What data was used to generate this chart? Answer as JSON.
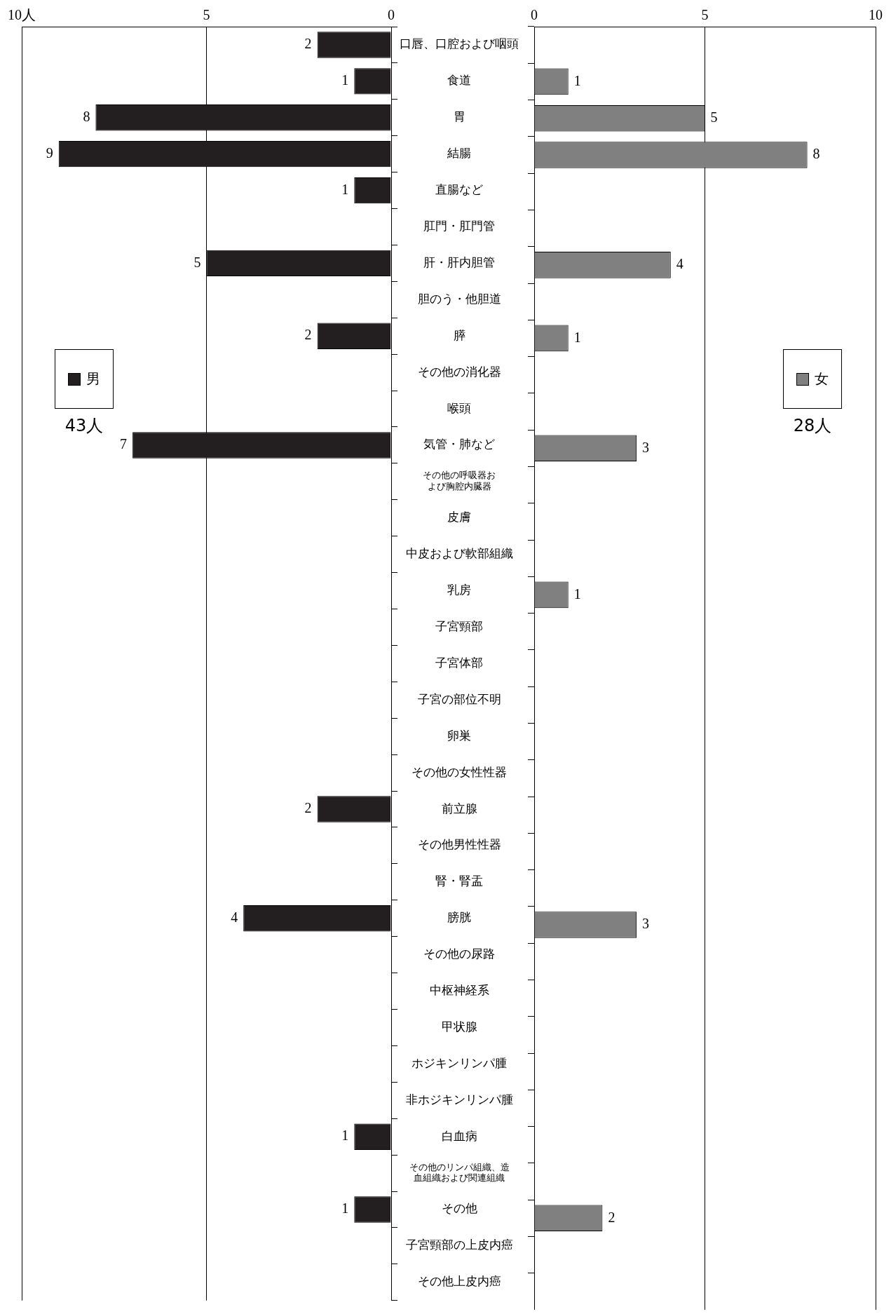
{
  "chart_data": [
    {
      "type": "bar",
      "orientation": "horizontal",
      "categories": [
        "口唇、口腔および咽頭",
        "食道",
        "胃",
        "結腸",
        "直腸など",
        "肛門・肛門管",
        "肝・肝内胆管",
        "胆のう・他胆道",
        "膵",
        "その他の消化器",
        "喉頭",
        "気管・肺など",
        "その他の呼吸器および胸腔内臓器",
        "皮膚",
        "中皮および軟部組織",
        "乳房",
        "子宮頸部",
        "子宮体部",
        "子宮の部位不明",
        "卵巣",
        "その他の女性性器",
        "前立腺",
        "その他男性性器",
        "腎・腎盂",
        "膀胱",
        "その他の尿路",
        "中枢神経系",
        "甲状腺",
        "ホジキンリンパ腫",
        "非ホジキンリンパ腫",
        "白血病",
        "その他のリンパ組織、造血組織および関連組織",
        "その他",
        "子宮頸部の上皮内癌",
        "その他上皮内癌"
      ],
      "series": [
        {
          "name": "男",
          "color": "#231f20",
          "values": [
            2,
            1,
            8,
            9,
            1,
            null,
            5,
            null,
            2,
            null,
            null,
            7,
            null,
            null,
            null,
            null,
            null,
            null,
            null,
            null,
            null,
            2,
            null,
            null,
            4,
            null,
            null,
            null,
            null,
            null,
            1,
            null,
            1,
            null,
            null
          ]
        }
      ],
      "xlim": [
        10,
        0
      ],
      "xticks": [
        {
          "value": 10,
          "label": "10人"
        },
        5,
        0
      ],
      "grid": "x",
      "legend": "left",
      "data_labels": true,
      "annotations": [
        "43人"
      ]
    },
    {
      "type": "bar",
      "orientation": "horizontal",
      "categories": [
        "口唇、口腔および咽頭",
        "食道",
        "胃",
        "結腸",
        "直腸など",
        "肛門・肛門管",
        "肝・肝内胆管",
        "胆のう・他胆道",
        "膵",
        "その他の消化器",
        "喉頭",
        "気管・肺など",
        "その他の呼吸器および胸腔内臓器",
        "皮膚",
        "中皮および軟部組織",
        "乳房",
        "子宮頸部",
        "子宮体部",
        "子宮の部位不明",
        "卵巣",
        "その他の女性性器",
        "前立腺",
        "その他男性性器",
        "腎・腎盂",
        "膀胱",
        "その他の尿路",
        "中枢神経系",
        "甲状腺",
        "ホジキンリンパ腫",
        "非ホジキンリンパ腫",
        "白血病",
        "その他のリンパ組織、造血組織および関連組織",
        "その他",
        "子宮頸部の上皮内癌",
        "その他上皮内癌"
      ],
      "series": [
        {
          "name": "女",
          "color": "#808080",
          "values": [
            null,
            1,
            5,
            8,
            null,
            null,
            4,
            null,
            1,
            null,
            null,
            3,
            null,
            null,
            null,
            1,
            null,
            null,
            null,
            null,
            null,
            null,
            null,
            null,
            3,
            null,
            null,
            null,
            null,
            null,
            null,
            null,
            2,
            null,
            null
          ]
        }
      ],
      "xlim": [
        0,
        10
      ],
      "xticks": [
        0,
        5,
        10
      ],
      "grid": "x",
      "legend": "right",
      "data_labels": true,
      "tick_labels": "x",
      "annotations": [
        "28人"
      ]
    }
  ]
}
